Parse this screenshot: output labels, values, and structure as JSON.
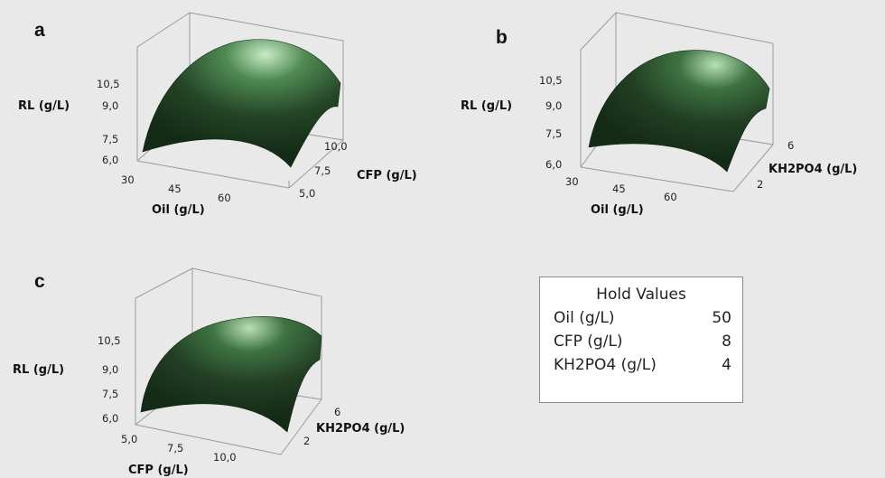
{
  "chart_data": [
    {
      "type": "surface",
      "panel": "a",
      "zlabel": "RL (g/L)",
      "xlabel": "Oil (g/L)",
      "ylabel": "CFP (g/L)",
      "z_ticks": [
        "6,0",
        "7,5",
        "9,0",
        "10,5"
      ],
      "x_ticks": [
        "30",
        "45",
        "60"
      ],
      "y_ticks": [
        "5,0",
        "7,5",
        "10,0"
      ],
      "zlim": [
        6.0,
        11.0
      ]
    },
    {
      "type": "surface",
      "panel": "b",
      "zlabel": "RL (g/L)",
      "xlabel": "Oil (g/L)",
      "ylabel": "KH2PO4 (g/L)",
      "z_ticks": [
        "6,0",
        "7,5",
        "9,0",
        "10,5"
      ],
      "x_ticks": [
        "30",
        "45",
        "60"
      ],
      "y_ticks": [
        "2",
        "6"
      ],
      "zlim": [
        6.0,
        11.0
      ]
    },
    {
      "type": "surface",
      "panel": "c",
      "zlabel": "RL (g/L)",
      "xlabel": "CFP (g/L)",
      "ylabel": "KH2PO4 (g/L)",
      "z_ticks": [
        "6,0",
        "7,5",
        "9,0",
        "10,5"
      ],
      "x_ticks": [
        "5,0",
        "7,5",
        "10,0"
      ],
      "y_ticks": [
        "2",
        "6"
      ],
      "zlim": [
        6.0,
        11.0
      ]
    }
  ],
  "hold_values": {
    "title": "Hold Values",
    "rows": [
      {
        "name": "Oil (g/L)",
        "value": "50"
      },
      {
        "name": "CFP (g/L)",
        "value": "8"
      },
      {
        "name": "KH2PO4 (g/L)",
        "value": "4"
      }
    ]
  },
  "colors": {
    "background": "#e9e9e9",
    "surface_dark": "#17301a",
    "surface_mid": "#2f5a33",
    "surface_light": "#c9ebc7",
    "box_line": "#9a9a9a"
  }
}
